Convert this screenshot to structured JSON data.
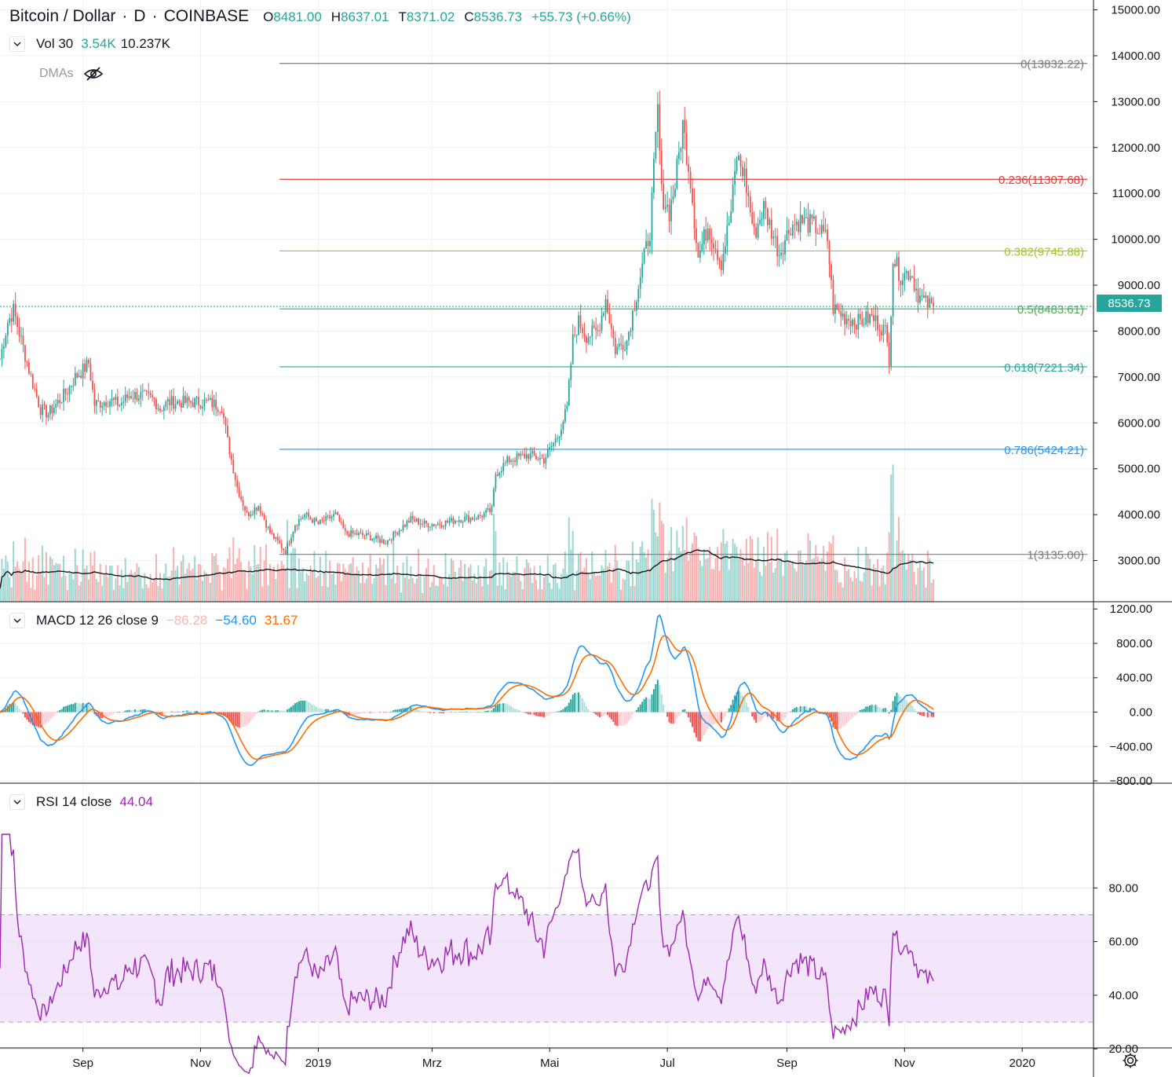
{
  "symbol": {
    "name": "Bitcoin / Dollar",
    "interval": "D",
    "exchange": "COINBASE",
    "open_label": "O",
    "open": "8481.00",
    "high_label": "H",
    "high": "8637.01",
    "low_label": "T",
    "low": "8371.02",
    "close_label": "C",
    "close": "8536.73",
    "change": "+55.73 (+0.66%)",
    "dot": "·"
  },
  "volume_legend": {
    "label": "Vol 30",
    "value1": "3.54K",
    "value2": "10.237K"
  },
  "dmas_label": "DMAs",
  "macd_legend": {
    "label": "MACD 12 26 close 9",
    "hist": "−86.28",
    "macd": "−54.60",
    "signal": "31.67"
  },
  "rsi_legend": {
    "label": "RSI 14 close",
    "value": "44.04"
  },
  "current_price_tag": "8536.73",
  "colors": {
    "up": "#26a69a",
    "down": "#ef5350",
    "macd_line": "#2196f3",
    "signal_line": "#ff6d00",
    "rsi_line": "#9c27b0",
    "rsi_band": "#f3e5fc",
    "fib_0": "#787b86",
    "fib_236": "#e53935",
    "fib_382": "#9cc928",
    "fib_5": "#4caf50",
    "fib_618": "#26a69a",
    "fib_786": "#2196f3",
    "fib_1": "#787b86"
  },
  "icons": [
    "chevron-down-icon",
    "eye-crossed-icon",
    "gear-icon"
  ],
  "chart_data": {
    "type": "candlestick",
    "price_axis": {
      "ticks": [
        "15000.00",
        "14000.00",
        "13000.00",
        "12000.00",
        "11000.00",
        "10000.00",
        "9000.00",
        "8000.00",
        "7000.00",
        "6000.00",
        "5000.00",
        "4000.00",
        "3000.00"
      ],
      "range": [
        2100,
        15000
      ]
    },
    "time_axis": {
      "ticks": [
        "Sep",
        "Nov",
        "2019",
        "Mrz",
        "Mai",
        "Jul",
        "Sep",
        "Nov",
        "2020"
      ]
    },
    "fibonacci": [
      {
        "level": "0",
        "price": 13832.22,
        "label": "0(13832.22)"
      },
      {
        "level": "0.236",
        "price": 11307.68,
        "label": "0.236(11307.68)"
      },
      {
        "level": "0.382",
        "price": 9745.88,
        "label": "0.382(9745.88)"
      },
      {
        "level": "0.5",
        "price": 8483.61,
        "label": "0.5(8483.61)"
      },
      {
        "level": "0.618",
        "price": 7221.34,
        "label": "0.618(7221.34)"
      },
      {
        "level": "0.786",
        "price": 5424.21,
        "label": "0.786(5424.21)"
      },
      {
        "level": "1",
        "price": 3135.0,
        "label": "1(3135.00)"
      }
    ],
    "price_path": [
      [
        "2018-07-20",
        7400
      ],
      [
        "2018-07-24",
        8200
      ],
      [
        "2018-07-27",
        8450
      ],
      [
        "2018-07-31",
        7800
      ],
      [
        "2018-08-05",
        7000
      ],
      [
        "2018-08-10",
        6300
      ],
      [
        "2018-08-14",
        6200
      ],
      [
        "2018-08-20",
        6500
      ],
      [
        "2018-08-24",
        6700
      ],
      [
        "2018-08-28",
        7000
      ],
      [
        "2018-09-01",
        7150
      ],
      [
        "2018-09-04",
        7300
      ],
      [
        "2018-09-07",
        6400
      ],
      [
        "2018-09-15",
        6500
      ],
      [
        "2018-09-20",
        6400
      ],
      [
        "2018-09-25",
        6600
      ],
      [
        "2018-10-01",
        6600
      ],
      [
        "2018-10-08",
        6500
      ],
      [
        "2018-10-11",
        6300
      ],
      [
        "2018-10-15",
        6450
      ],
      [
        "2018-10-25",
        6450
      ],
      [
        "2018-11-05",
        6450
      ],
      [
        "2018-11-12",
        6350
      ],
      [
        "2018-11-15",
        5600
      ],
      [
        "2018-11-20",
        4600
      ],
      [
        "2018-11-25",
        4000
      ],
      [
        "2018-12-01",
        4200
      ],
      [
        "2018-12-07",
        3600
      ],
      [
        "2018-12-15",
        3200
      ],
      [
        "2018-12-20",
        3800
      ],
      [
        "2018-12-25",
        4000
      ],
      [
        "2019-01-01",
        3800
      ],
      [
        "2019-01-10",
        4000
      ],
      [
        "2019-01-15",
        3600
      ],
      [
        "2019-01-25",
        3550
      ],
      [
        "2019-02-05",
        3400
      ],
      [
        "2019-02-10",
        3600
      ],
      [
        "2019-02-18",
        3900
      ],
      [
        "2019-02-25",
        3800
      ],
      [
        "2019-03-05",
        3800
      ],
      [
        "2019-03-15",
        3900
      ],
      [
        "2019-03-25",
        3950
      ],
      [
        "2019-04-01",
        4100
      ],
      [
        "2019-04-03",
        4900
      ],
      [
        "2019-04-10",
        5200
      ],
      [
        "2019-04-20",
        5300
      ],
      [
        "2019-04-28",
        5200
      ],
      [
        "2019-05-05",
        5700
      ],
      [
        "2019-05-10",
        6300
      ],
      [
        "2019-05-13",
        7800
      ],
      [
        "2019-05-16",
        8200
      ],
      [
        "2019-05-20",
        7900
      ],
      [
        "2019-05-26",
        8000
      ],
      [
        "2019-05-30",
        8700
      ],
      [
        "2019-06-04",
        7600
      ],
      [
        "2019-06-10",
        7800
      ],
      [
        "2019-06-16",
        9000
      ],
      [
        "2019-06-22",
        10200
      ],
      [
        "2019-06-26",
        12800
      ],
      [
        "2019-06-28",
        11000
      ],
      [
        "2019-07-02",
        10600
      ],
      [
        "2019-07-05",
        11200
      ],
      [
        "2019-07-09",
        12500
      ],
      [
        "2019-07-13",
        11300
      ],
      [
        "2019-07-17",
        9600
      ],
      [
        "2019-07-22",
        10300
      ],
      [
        "2019-07-29",
        9500
      ],
      [
        "2019-08-03",
        10600
      ],
      [
        "2019-08-06",
        11800
      ],
      [
        "2019-08-10",
        11400
      ],
      [
        "2019-08-15",
        10100
      ],
      [
        "2019-08-20",
        10700
      ],
      [
        "2019-08-28",
        9700
      ],
      [
        "2019-09-03",
        10300
      ],
      [
        "2019-09-08",
        10400
      ],
      [
        "2019-09-15",
        10300
      ],
      [
        "2019-09-22",
        10000
      ],
      [
        "2019-09-25",
        8500
      ],
      [
        "2019-10-01",
        8300
      ],
      [
        "2019-10-08",
        8200
      ],
      [
        "2019-10-15",
        8300
      ],
      [
        "2019-10-22",
        8000
      ],
      [
        "2019-10-24",
        7400
      ],
      [
        "2019-10-26",
        9600
      ],
      [
        "2019-10-30",
        9200
      ],
      [
        "2019-11-04",
        9300
      ],
      [
        "2019-11-08",
        8800
      ],
      [
        "2019-11-12",
        8600
      ],
      [
        "2019-11-16",
        8536.73
      ]
    ],
    "macd": {
      "ticks": [
        "1200.00",
        "800.00",
        "400.00",
        "0.00",
        "−400.00",
        "−800.00"
      ],
      "range": [
        -800,
        1200
      ]
    },
    "rsi": {
      "ticks": [
        "80.00",
        "60.00",
        "40.00",
        "20.00"
      ],
      "range": [
        0,
        100
      ],
      "upper_band": 70,
      "lower_band": 30
    }
  }
}
